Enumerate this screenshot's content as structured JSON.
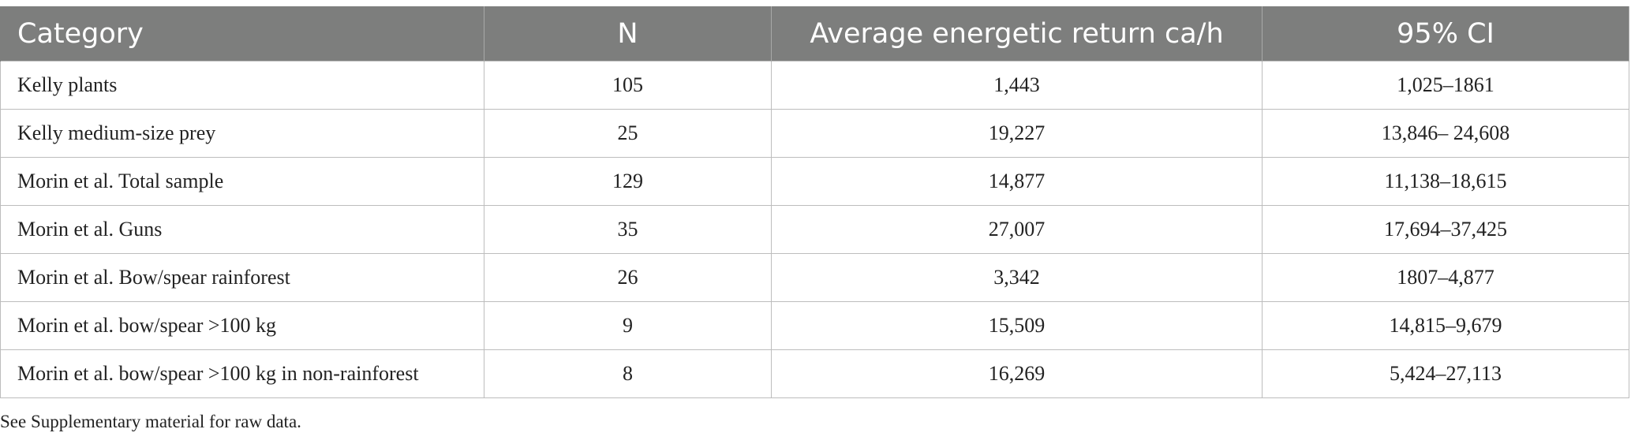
{
  "table": {
    "headers": [
      "Category",
      "N",
      "Average energetic return ca/h",
      "95% CI"
    ],
    "rows": [
      [
        "Kelly plants",
        "105",
        "1,443",
        "1,025–1861"
      ],
      [
        "Kelly medium-size prey",
        "25",
        "19,227",
        "13,846– 24,608"
      ],
      [
        "Morin et al. Total sample",
        "129",
        "14,877",
        "11,138–18,615"
      ],
      [
        "Morin et al. Guns",
        "35",
        "27,007",
        "17,694–37,425"
      ],
      [
        "Morin et al. Bow/spear rainforest",
        "26",
        "3,342",
        "1807–4,877"
      ],
      [
        "Morin et al. bow/spear >100 kg",
        "9",
        "15,509",
        "14,815–9,679"
      ],
      [
        "Morin et al. bow/spear >100 kg in non-rainforest",
        "8",
        "16,269",
        "5,424–27,113"
      ]
    ]
  },
  "footnote": "See Supplementary material for raw data."
}
